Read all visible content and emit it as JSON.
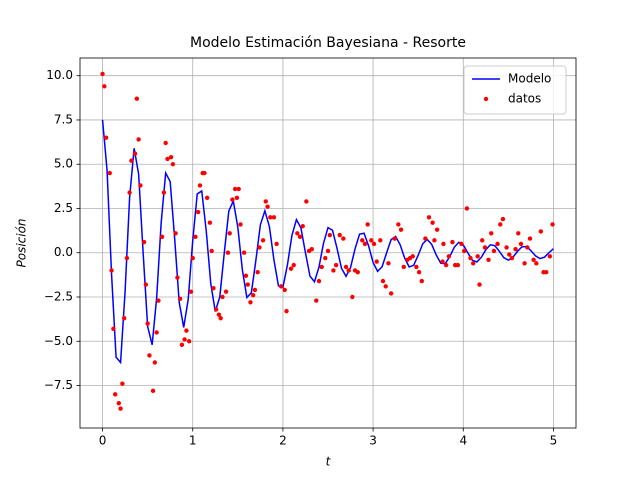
{
  "chart_data": {
    "type": "line",
    "title": "Modelo Estimación Bayesiana - Resorte",
    "xlabel": "t",
    "ylabel": "Posición",
    "xlim": [
      -0.25,
      5.25
    ],
    "ylim": [
      -9.9,
      11.0
    ],
    "xticks": [
      0,
      1,
      2,
      3,
      4,
      5
    ],
    "yticks": [
      {
        "value": -7.5,
        "label": "−7.5"
      },
      {
        "value": -5.0,
        "label": "−5.0"
      },
      {
        "value": -2.5,
        "label": "−2.5"
      },
      {
        "value": 0,
        "label": "0.0"
      },
      {
        "value": 2.5,
        "label": "2.5"
      },
      {
        "value": 5.0,
        "label": "5.0"
      },
      {
        "value": 7.5,
        "label": "7.5"
      },
      {
        "value": 10.0,
        "label": "10.0"
      }
    ],
    "grid": true,
    "legend": "upper-right",
    "series": [
      {
        "name": "Modelo",
        "type": "line",
        "color": "#0000ff",
        "x": [
          0,
          0.05,
          0.1,
          0.15,
          0.2,
          0.25,
          0.3,
          0.35,
          0.4,
          0.45,
          0.5,
          0.55,
          0.6,
          0.65,
          0.7,
          0.75,
          0.8,
          0.85,
          0.9,
          0.95,
          1,
          1.05,
          1.1,
          1.15,
          1.2,
          1.25,
          1.3,
          1.35,
          1.4,
          1.45,
          1.5,
          1.55,
          1.6,
          1.65,
          1.7,
          1.75,
          1.8,
          1.85,
          1.9,
          1.95,
          2,
          2.05,
          2.1,
          2.15,
          2.2,
          2.25,
          2.3,
          2.35,
          2.4,
          2.45,
          2.5,
          2.55,
          2.6,
          2.65,
          2.7,
          2.75,
          2.8,
          2.85,
          2.9,
          2.95,
          3,
          3.05,
          3.1,
          3.15,
          3.2,
          3.25,
          3.3,
          3.35,
          3.4,
          3.45,
          3.5,
          3.55,
          3.6,
          3.65,
          3.7,
          3.75,
          3.8,
          3.85,
          3.9,
          3.95,
          4,
          4.05,
          4.1,
          4.15,
          4.2,
          4.25,
          4.3,
          4.35,
          4.4,
          4.45,
          4.5,
          4.55,
          4.6,
          4.65,
          4.7,
          4.75,
          4.8,
          4.85,
          4.9,
          4.95,
          5
        ],
        "values": [
          7.5,
          4.67,
          -1.22,
          -5.9,
          -6.2,
          -2.19,
          3.1,
          5.9,
          4.45,
          0,
          -4.17,
          -5.2,
          -2.55,
          1.69,
          4.5,
          4.02,
          0.78,
          -2.8,
          -4.22,
          -2.63,
          0.69,
          3.32,
          3.49,
          1.23,
          -1.74,
          -3.32,
          -2.5,
          0,
          2.35,
          2.92,
          1.44,
          -0.95,
          -2.53,
          -2.26,
          -0.44,
          1.57,
          2.37,
          1.48,
          -0.39,
          -1.86,
          -1.96,
          -0.69,
          0.98,
          1.87,
          1.4,
          0,
          -1.32,
          -1.64,
          -0.81,
          0.53,
          1.42,
          1.27,
          0.25,
          -0.88,
          -1.33,
          -0.83,
          0.22,
          1.05,
          1.1,
          0.39,
          -0.55,
          -1.05,
          -0.79,
          0,
          0.74,
          0.92,
          0.45,
          -0.3,
          -0.8,
          -0.71,
          -0.14,
          0.5,
          0.75,
          0.47,
          -0.12,
          -0.59,
          -0.62,
          -0.22,
          0.31,
          0.59,
          0.44,
          0,
          -0.42,
          -0.52,
          -0.26,
          0.17,
          0.45,
          0.4,
          0.08,
          -0.28,
          -0.42,
          -0.26,
          0.07,
          0.33,
          0.35,
          0.12,
          -0.17,
          -0.33,
          -0.25,
          0,
          0.23
        ]
      },
      {
        "name": "datos",
        "type": "scatter",
        "color": "#ff0000",
        "x": [
          0,
          0.02,
          0.04,
          0.08,
          0.1,
          0.12,
          0.14,
          0.18,
          0.2,
          0.22,
          0.24,
          0.27,
          0.3,
          0.32,
          0.36,
          0.38,
          0.4,
          0.42,
          0.46,
          0.48,
          0.5,
          0.52,
          0.56,
          0.58,
          0.6,
          0.62,
          0.66,
          0.68,
          0.7,
          0.72,
          0.76,
          0.78,
          0.81,
          0.83,
          0.86,
          0.88,
          0.91,
          0.93,
          0.96,
          0.98,
          1.0,
          1.03,
          1.06,
          1.08,
          1.11,
          1.13,
          1.16,
          1.19,
          1.21,
          1.23,
          1.26,
          1.29,
          1.31,
          1.33,
          1.37,
          1.39,
          1.41,
          1.44,
          1.47,
          1.49,
          1.51,
          1.53,
          1.57,
          1.59,
          1.61,
          1.64,
          1.67,
          1.69,
          1.72,
          1.74,
          1.78,
          1.81,
          1.83,
          1.86,
          1.9,
          1.93,
          1.98,
          2.02,
          2.04,
          2.09,
          2.12,
          2.16,
          2.19,
          2.22,
          2.26,
          2.29,
          2.32,
          2.37,
          2.4,
          2.43,
          2.47,
          2.5,
          2.52,
          2.56,
          2.59,
          2.63,
          2.67,
          2.7,
          2.73,
          2.77,
          2.8,
          2.83,
          2.88,
          2.91,
          2.94,
          2.98,
          3.01,
          3.04,
          3.08,
          3.11,
          3.14,
          3.17,
          3.2,
          3.24,
          3.28,
          3.31,
          3.34,
          3.38,
          3.41,
          3.44,
          3.48,
          3.51,
          3.54,
          3.58,
          3.62,
          3.66,
          3.68,
          3.71,
          3.77,
          3.78,
          3.81,
          3.84,
          3.88,
          3.91,
          3.94,
          3.98,
          4.01,
          4.04,
          4.08,
          4.11,
          4.16,
          4.18,
          4.21,
          4.24,
          4.28,
          4.31,
          4.34,
          4.38,
          4.41,
          4.44,
          4.48,
          4.51,
          4.54,
          4.58,
          4.61,
          4.64,
          4.68,
          4.71,
          4.74,
          4.78,
          4.81,
          4.86,
          4.89,
          4.92,
          4.96,
          4.99
        ],
        "values": [
          10.1,
          9.4,
          6.5,
          4.5,
          -1.0,
          -4.3,
          -8.0,
          -8.5,
          -8.8,
          -7.4,
          -3.7,
          -0.3,
          3.4,
          5.2,
          5.6,
          8.7,
          6.4,
          3.8,
          0.6,
          -1.8,
          -4.0,
          -5.8,
          -7.8,
          -6.2,
          -4.5,
          -2.7,
          0.9,
          3.4,
          6.2,
          5.3,
          5.4,
          5.0,
          1.1,
          -1.4,
          -2.6,
          -5.2,
          -4.9,
          -4.4,
          -5.0,
          -2.2,
          -0.3,
          0.9,
          2.3,
          3.8,
          4.5,
          4.5,
          3.1,
          1.7,
          0.1,
          -2.0,
          -3.2,
          -3.5,
          -3.7,
          -2.5,
          -2.2,
          0.0,
          1.1,
          3.0,
          3.6,
          3.1,
          3.6,
          1.6,
          0.0,
          -1.3,
          -1.8,
          -2.8,
          -2.4,
          -2.1,
          -1.1,
          0.3,
          0.7,
          2.9,
          2.6,
          2.0,
          2.0,
          0.5,
          -1.9,
          -2.1,
          -3.3,
          -0.9,
          -0.7,
          1.1,
          0.9,
          1.5,
          2.9,
          0.1,
          0.2,
          -2.7,
          -1.6,
          -0.8,
          -0.3,
          0.1,
          1.0,
          -1.0,
          -0.7,
          1.0,
          0.8,
          -0.8,
          -1.0,
          -2.5,
          -1.0,
          -1.1,
          0.7,
          0.5,
          1.6,
          0.7,
          0.5,
          -0.5,
          0.7,
          -1.6,
          -1.9,
          -0.6,
          -2.3,
          0.8,
          1.6,
          1.3,
          -0.8,
          -0.4,
          -0.3,
          -0.2,
          -0.8,
          -1.1,
          -1.6,
          0.8,
          2.0,
          1.7,
          0.7,
          1.3,
          -0.5,
          0.5,
          -0.7,
          -0.2,
          0.6,
          -0.7,
          -0.7,
          0.5,
          0.1,
          2.5,
          -0.3,
          -0.6,
          -0.2,
          -1.8,
          0.7,
          0.3,
          -0.4,
          1.1,
          0.1,
          0.5,
          1.6,
          1.9,
          0.3,
          -0.1,
          -0.3,
          0.2,
          1.1,
          0.5,
          -0.6,
          0.3,
          0.8,
          -0.4,
          -0.6,
          1.2,
          -1.1,
          -1.1,
          -0.2,
          1.6
        ]
      }
    ]
  }
}
